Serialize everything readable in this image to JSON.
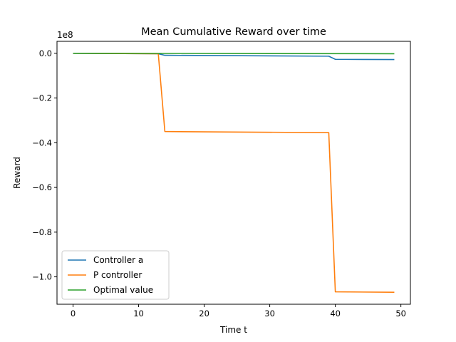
{
  "chart_data": {
    "type": "line",
    "title": "Mean Cumulative Reward over time",
    "xlabel": "Time t",
    "ylabel": "Reward",
    "offset_label": "1e8",
    "xlim": [
      -2.45,
      51.45
    ],
    "ylim": [
      -1.1225,
      0.0535
    ],
    "x_ticks": [
      0,
      10,
      20,
      30,
      40,
      50
    ],
    "x_tick_labels": [
      "0",
      "10",
      "20",
      "30",
      "40",
      "50"
    ],
    "y_ticks": [
      0.0,
      -0.2,
      -0.4,
      -0.6,
      -0.8,
      -1.0
    ],
    "y_tick_labels": [
      "0.0",
      "−0.2",
      "−0.4",
      "−0.6",
      "−0.8",
      "−1.0"
    ],
    "grid": false,
    "legend_position": "lower-left",
    "series": [
      {
        "name": "Controller a",
        "color": "#1f77b4",
        "points": [
          [
            0,
            0.0
          ],
          [
            13,
            -0.002
          ],
          [
            14,
            -0.009
          ],
          [
            39,
            -0.013
          ],
          [
            40,
            -0.027
          ],
          [
            49,
            -0.028
          ]
        ]
      },
      {
        "name": "P controller",
        "color": "#ff7f0e",
        "points": [
          [
            0,
            0.0
          ],
          [
            13,
            -0.002
          ],
          [
            14,
            -0.35
          ],
          [
            39,
            -0.355
          ],
          [
            40,
            -1.067
          ],
          [
            49,
            -1.069
          ]
        ]
      },
      {
        "name": "Optimal value",
        "color": "#2ca02c",
        "points": [
          [
            0,
            0.0
          ],
          [
            49,
            -0.002
          ]
        ]
      }
    ]
  }
}
